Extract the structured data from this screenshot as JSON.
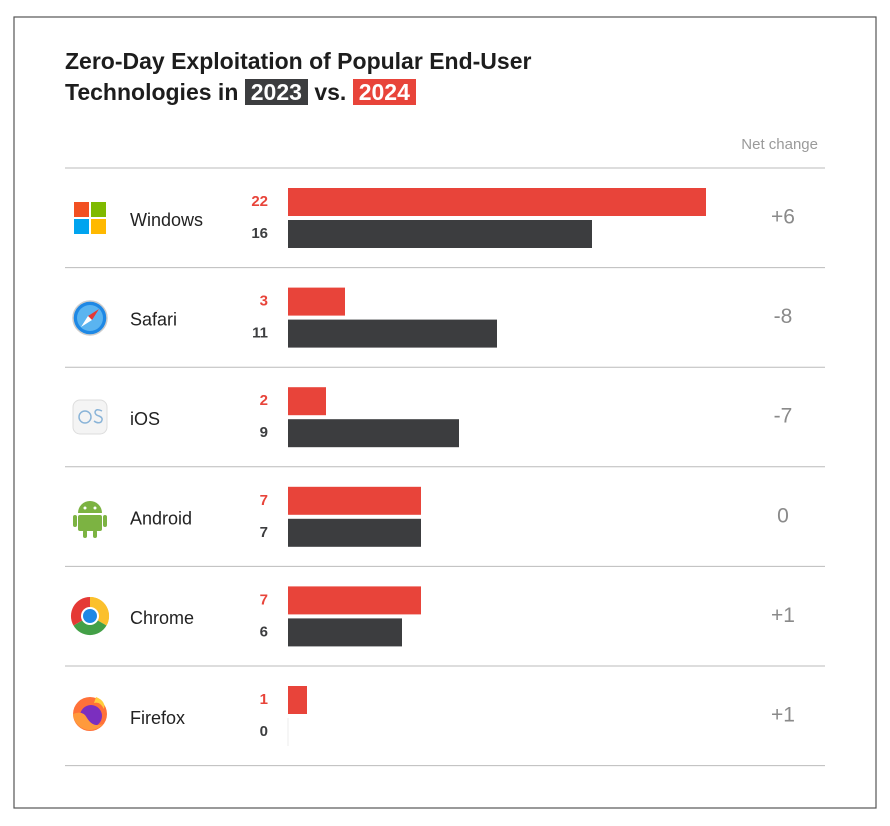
{
  "chart_data": {
    "type": "bar",
    "title": "Zero-Day Exploitation of Popular End-User Technologies in",
    "title_joiner": "vs.",
    "categories": [
      "Windows",
      "Safari",
      "iOS",
      "Android",
      "Chrome",
      "Firefox"
    ],
    "series": [
      {
        "name": "2024",
        "color": "#e8443a",
        "values": [
          22,
          3,
          2,
          7,
          7,
          1
        ]
      },
      {
        "name": "2023",
        "color": "#3c3d3f",
        "values": [
          16,
          11,
          9,
          7,
          6,
          0
        ]
      }
    ],
    "xlim": [
      0,
      22
    ],
    "net_change": {
      "label": "Net change",
      "values": [
        6,
        -8,
        -7,
        0,
        1,
        1
      ],
      "value_labels": [
        "+6",
        "-8",
        "-7",
        "0",
        "+1",
        "+1"
      ]
    }
  }
}
